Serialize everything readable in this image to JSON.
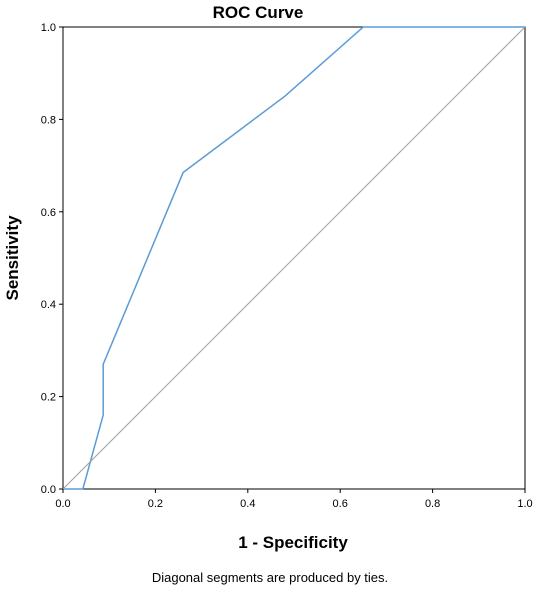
{
  "chart_data": {
    "type": "line",
    "title": "ROC Curve",
    "xlabel": "1 - Specificity",
    "ylabel": "Sensitivity",
    "xlim": [
      0.0,
      1.0
    ],
    "ylim": [
      0.0,
      1.0
    ],
    "x_ticks": [
      "0.0",
      "0.2",
      "0.4",
      "0.6",
      "0.8",
      "1.0"
    ],
    "y_ticks": [
      "0.0",
      "0.2",
      "0.4",
      "0.6",
      "0.8",
      "1.0"
    ],
    "grid": false,
    "series": [
      {
        "color": "#5b9bd5",
        "x": [
          0.0,
          0.043,
          0.087,
          0.087,
          0.26,
          0.48,
          0.65,
          1.0
        ],
        "y": [
          0.0,
          0.0,
          0.16,
          0.27,
          0.685,
          0.85,
          1.0,
          1.0
        ]
      },
      {
        "color": "#a0a0a0",
        "x": [
          0.0,
          1.0
        ],
        "y": [
          0.0,
          1.0
        ]
      }
    ],
    "footnote": "Diagonal segments are produced by ties."
  }
}
